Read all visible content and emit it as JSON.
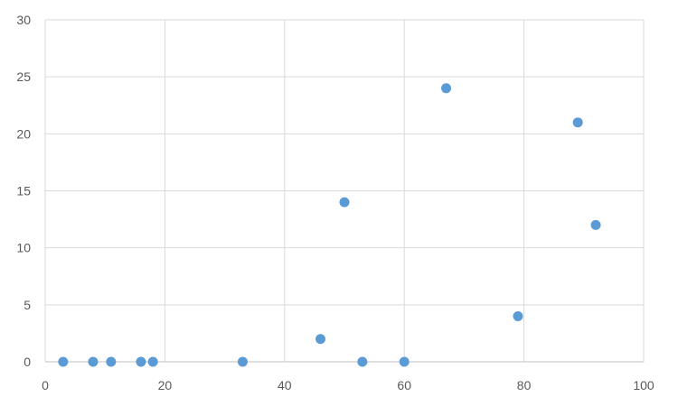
{
  "chart_data": {
    "type": "scatter",
    "title": "",
    "xlabel": "",
    "ylabel": "",
    "xlim": [
      0,
      100
    ],
    "ylim": [
      0,
      30
    ],
    "x_ticks": [
      0,
      20,
      40,
      60,
      80,
      100
    ],
    "y_ticks": [
      0,
      5,
      10,
      15,
      20,
      25,
      30
    ],
    "grid": true,
    "legend": "none",
    "marker_color": "#5b9bd5",
    "points": [
      {
        "x": 3,
        "y": 0
      },
      {
        "x": 8,
        "y": 0
      },
      {
        "x": 11,
        "y": 0
      },
      {
        "x": 16,
        "y": 0
      },
      {
        "x": 18,
        "y": 0
      },
      {
        "x": 33,
        "y": 0
      },
      {
        "x": 46,
        "y": 2
      },
      {
        "x": 50,
        "y": 14
      },
      {
        "x": 53,
        "y": 0
      },
      {
        "x": 60,
        "y": 0
      },
      {
        "x": 67,
        "y": 24
      },
      {
        "x": 79,
        "y": 4
      },
      {
        "x": 89,
        "y": 21
      },
      {
        "x": 92,
        "y": 12
      }
    ]
  }
}
